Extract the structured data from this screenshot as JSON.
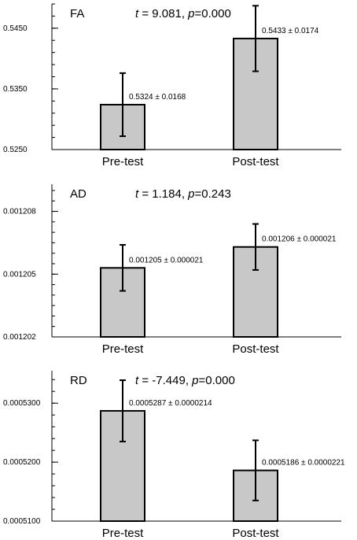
{
  "style": {
    "bar_fill": "#c8c8c8",
    "bar_edge": "#000000"
  },
  "chart_data": [
    {
      "type": "bar",
      "title": "FA",
      "stat_t": "9.081",
      "stat_p": "0.000",
      "categories": [
        "Pre-test",
        "Post-test"
      ],
      "values": [
        0.5324,
        0.5433
      ],
      "errors": [
        0.0052,
        0.0054
      ],
      "data_labels": [
        "0.5324 ± 0.0168",
        "0.5433 ± 0.0174"
      ],
      "ylim": [
        0.525,
        0.549
      ],
      "yticks": [
        0.525,
        0.535,
        0.545
      ],
      "ytick_labels": [
        "0.5250",
        "0.5350",
        "0.5450"
      ],
      "minor_step": 0.002
    },
    {
      "type": "bar",
      "title": "AD",
      "stat_t": "1.184",
      "stat_p": "0.243",
      "categories": [
        "Pre-test",
        "Post-test"
      ],
      "values": [
        0.0012053,
        0.0012063
      ],
      "errors": [
        1.1e-06,
        1.1e-06
      ],
      "data_labels": [
        "0.001205 ± 0.000021",
        "0.001206 ± 0.000021"
      ],
      "ylim": [
        0.001202,
        0.0012093
      ],
      "yticks": [
        0.001202,
        0.001205,
        0.001208
      ],
      "ytick_labels": [
        "0.001202",
        "0.001205",
        "0.001208"
      ],
      "minor_step": 5e-07
    },
    {
      "type": "bar",
      "title": "RD",
      "stat_t": "-7.449",
      "stat_p": "0.000",
      "categories": [
        "Pre-test",
        "Post-test"
      ],
      "values": [
        0.0005287,
        0.0005186
      ],
      "errors": [
        5.2e-06,
        5.1e-06
      ],
      "data_labels": [
        "0.0005287 ± 0.0000214",
        "0.0005186 ± 0.0000221"
      ],
      "ylim": [
        0.00051,
        0.0005355
      ],
      "yticks": [
        0.00051,
        0.00052,
        0.00053
      ],
      "ytick_labels": [
        "0.0005100",
        "0.0005200",
        "0.0005300"
      ],
      "minor_step": 2e-06
    }
  ]
}
